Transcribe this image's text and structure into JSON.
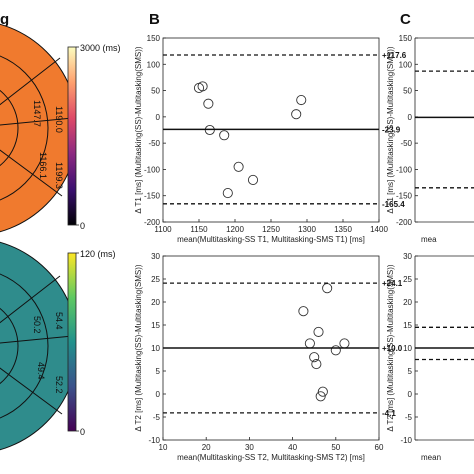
{
  "panel_labels": {
    "left": "g",
    "B": "B",
    "C": "C"
  },
  "colorbars": [
    {
      "max_label": "3000 (ms)",
      "min_label": "0",
      "colors": [
        "#000004",
        "#3b0f70",
        "#8c2981",
        "#de4968",
        "#fe9f6d",
        "#fcfdbf"
      ]
    },
    {
      "max_label": "120 (ms)",
      "min_label": "0",
      "colors": [
        "#440154",
        "#3b528b",
        "#21918c",
        "#5ec962",
        "#fde725"
      ]
    }
  ],
  "bullseyes": [
    {
      "fill": "#f07a2e",
      "labels": [
        "1190.0",
        "1147.7",
        "1166.1",
        "1199.3"
      ]
    },
    {
      "fill": "#2f8c8c",
      "labels": [
        "54.4",
        "50.2",
        "49.4",
        "52.2"
      ]
    }
  ],
  "chart_data": [
    {
      "type": "scatter",
      "title": "",
      "xlabel": "mean(Multitasking-SS T1, Multitasking-SMS T1) [ms]",
      "ylabel": "Δ T1 [ms] (Multitasking(SS)-Multitasking(SMS))",
      "xlim": [
        1100,
        1400
      ],
      "ylim": [
        -200,
        150
      ],
      "xticks": [
        "1100",
        "1150",
        "1200",
        "1250",
        "1300",
        "1350",
        "1400"
      ],
      "yticks": [
        "-200",
        "-150",
        "-100",
        "-50",
        "0",
        "50",
        "100",
        "150"
      ],
      "x": [
        1150,
        1155,
        1163,
        1165,
        1185,
        1190,
        1205,
        1225,
        1285,
        1292
      ],
      "y": [
        55,
        58,
        25,
        -25,
        -35,
        -145,
        -95,
        -120,
        5,
        32
      ],
      "lines": [
        {
          "value": 117.6,
          "label": "+117.6",
          "style": "dashed"
        },
        {
          "value": -23.9,
          "label": "-23.9",
          "style": "solid"
        },
        {
          "value": -165.4,
          "label": "-165.4",
          "style": "dashed"
        }
      ]
    },
    {
      "type": "scatter",
      "title": "",
      "xlabel": "mean(Multitasking-SS T2, Multitasking-SMS T2) [ms]",
      "ylabel": "Δ T2 [ms] (Multitasking(SS)-Multitasking(SMS))",
      "xlim": [
        10,
        60
      ],
      "ylim": [
        -10,
        30
      ],
      "xticks": [
        "10",
        "20",
        "30",
        "40",
        "50",
        "60"
      ],
      "yticks": [
        "-10",
        "-5",
        "0",
        "5",
        "10",
        "15",
        "20",
        "25",
        "30"
      ],
      "x": [
        42.5,
        44,
        45,
        45.5,
        46,
        46.5,
        47,
        48,
        50,
        52
      ],
      "y": [
        18,
        11,
        8,
        6.5,
        13.5,
        -0.5,
        0.5,
        23,
        9.5,
        11
      ],
      "lines": [
        {
          "value": 24.1,
          "label": "+24.1",
          "style": "dashed"
        },
        {
          "value": 10.0,
          "label": "+10.0",
          "style": "solid"
        },
        {
          "value": -4.1,
          "label": "-4.1",
          "style": "dashed"
        }
      ]
    },
    {
      "type": "scatter",
      "title": "",
      "xlabel": "mea",
      "ylabel": "Δ T1 [ms] (Multitasking(SS)-Multitasking(SMS))",
      "yticks": [
        "-200",
        "-150",
        "-100",
        "-50",
        "0",
        "50",
        "100",
        "150"
      ],
      "ylim": [
        -200,
        150
      ],
      "lines": [
        {
          "value": 87,
          "style": "dashed"
        },
        {
          "value": -1,
          "style": "solid"
        },
        {
          "value": -135,
          "style": "dashed"
        }
      ]
    },
    {
      "type": "scatter",
      "title": "",
      "xlabel": "mean",
      "ylabel": "Δ T2 [ms] (Multitasking(SS)-Multitasking(SMS))",
      "yticks": [
        "-10",
        "-5",
        "0",
        "5",
        "10",
        "15",
        "20",
        "25",
        "30"
      ],
      "ylim": [
        -10,
        30
      ],
      "lines": [
        {
          "value": 14.5,
          "style": "dashed"
        },
        {
          "value": 10,
          "style": "solid"
        },
        {
          "value": 7.5,
          "style": "dashed"
        }
      ]
    }
  ]
}
